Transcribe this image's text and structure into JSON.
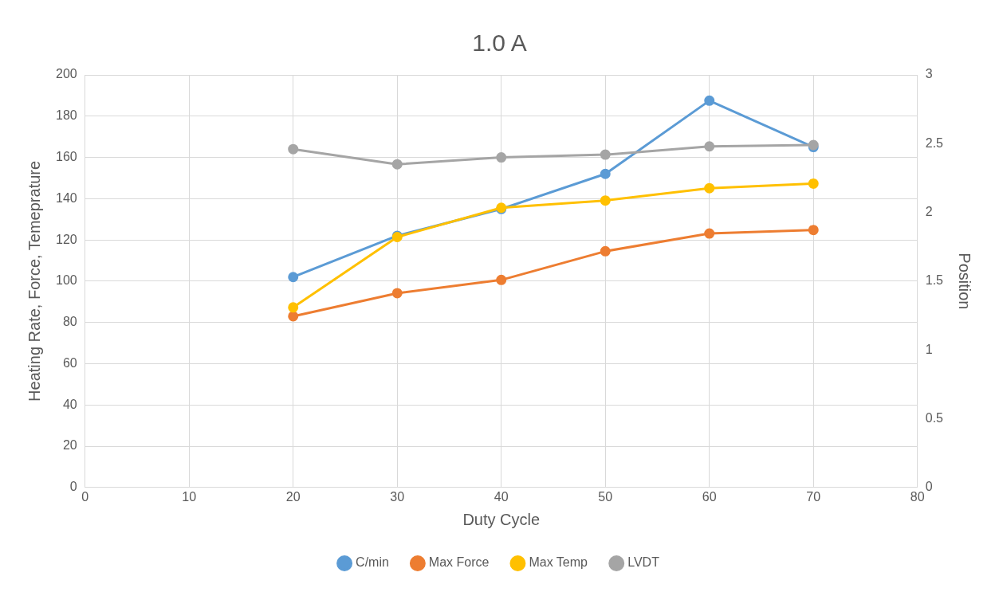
{
  "chart_data": {
    "type": "line",
    "title": "1.0 A",
    "xlabel": "Duty Cycle",
    "ylabel": "Heating Rate, Force, Temeprature",
    "y2label": "Position",
    "x": [
      20,
      30,
      40,
      50,
      60,
      70
    ],
    "xlim": [
      0,
      80
    ],
    "xticks": [
      0,
      10,
      20,
      30,
      40,
      50,
      60,
      70,
      80
    ],
    "ylim": [
      0,
      200
    ],
    "yticks": [
      0,
      20,
      40,
      60,
      80,
      100,
      120,
      140,
      160,
      180,
      200
    ],
    "y2lim": [
      0,
      3
    ],
    "y2ticks": [
      0,
      0.5,
      1,
      1.5,
      2,
      2.5,
      3
    ],
    "grid": true,
    "legend": "bottom",
    "marker": "circle",
    "line_style": "solid",
    "series": [
      {
        "name": "C/min",
        "color": "#5b9bd5",
        "values": [
          102,
          122,
          135,
          152,
          187.5,
          165
        ]
      },
      {
        "name": "Max Force",
        "color": "#ed7d31",
        "values": [
          83,
          94.2,
          100.6,
          114.5,
          123.1,
          124.8
        ]
      },
      {
        "name": "Max Temp",
        "color": "#ffc000",
        "values": [
          87.3,
          121.4,
          135.6,
          139.1,
          145.1,
          147.3
        ]
      },
      {
        "name": "LVDT",
        "color": "#a5a5a5",
        "axis": "y2",
        "values": [
          2.46,
          2.35,
          2.4,
          2.42,
          2.48,
          2.49
        ]
      }
    ]
  }
}
